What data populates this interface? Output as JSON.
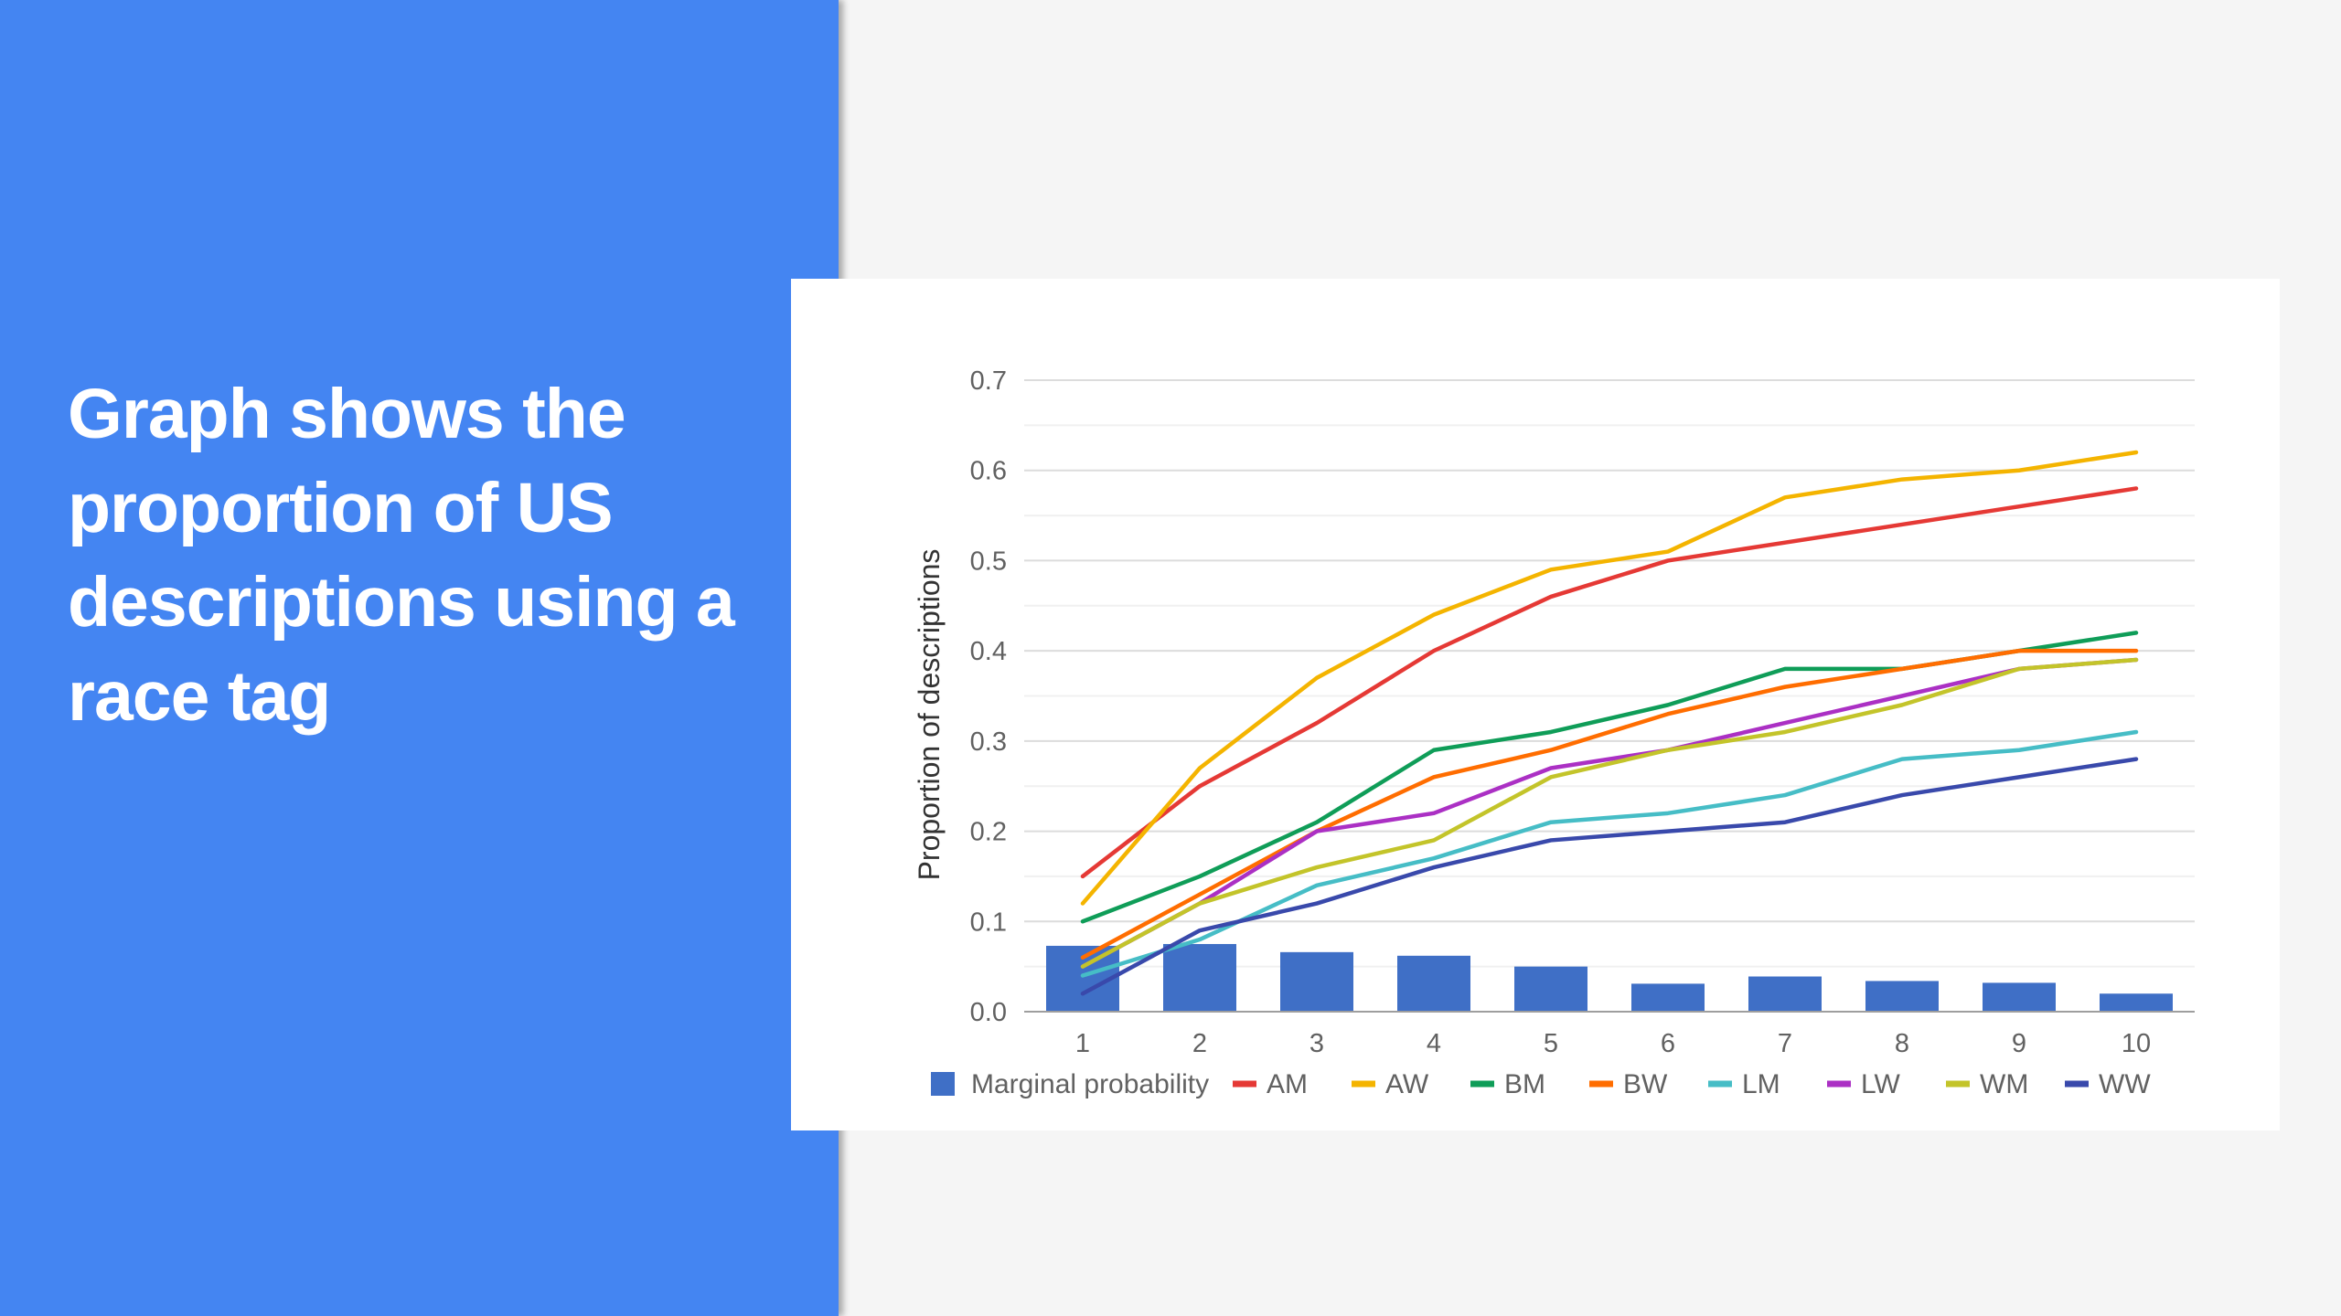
{
  "slide": {
    "title": "Graph shows the proportion of US descriptions using a race tag",
    "panel_color": "#4485f2"
  },
  "chart_data": {
    "type": "bar",
    "title": "",
    "xlabel": "",
    "ylabel": "Proportion of descriptions",
    "categories": [
      "1",
      "2",
      "3",
      "4",
      "5",
      "6",
      "7",
      "8",
      "9",
      "10"
    ],
    "ylim": [
      0,
      0.7
    ],
    "yticks": [
      "0.0",
      "0.1",
      "0.2",
      "0.3",
      "0.4",
      "0.5",
      "0.6",
      "0.7"
    ],
    "grid": true,
    "legend_position": "bottom",
    "bar_series": {
      "name": "Marginal probability",
      "color": "#3f6fc6",
      "values": [
        0.073,
        0.075,
        0.066,
        0.062,
        0.05,
        0.031,
        0.039,
        0.034,
        0.032,
        0.02
      ]
    },
    "line_series": [
      {
        "name": "AM",
        "color": "#e53935",
        "values": [
          0.15,
          0.25,
          0.32,
          0.4,
          0.46,
          0.5,
          0.52,
          0.54,
          0.56,
          0.58
        ]
      },
      {
        "name": "AW",
        "color": "#f4b400",
        "values": [
          0.12,
          0.27,
          0.37,
          0.44,
          0.49,
          0.51,
          0.57,
          0.59,
          0.6,
          0.62
        ]
      },
      {
        "name": "BM",
        "color": "#0f9d58",
        "values": [
          0.1,
          0.15,
          0.21,
          0.29,
          0.31,
          0.34,
          0.38,
          0.38,
          0.4,
          0.42
        ]
      },
      {
        "name": "BW",
        "color": "#ff6d00",
        "values": [
          0.06,
          0.13,
          0.2,
          0.26,
          0.29,
          0.33,
          0.36,
          0.38,
          0.4,
          0.4
        ]
      },
      {
        "name": "LM",
        "color": "#46bdc6",
        "values": [
          0.04,
          0.08,
          0.14,
          0.17,
          0.21,
          0.22,
          0.24,
          0.28,
          0.29,
          0.31
        ]
      },
      {
        "name": "LW",
        "color": "#ab30c4",
        "values": [
          0.05,
          0.12,
          0.2,
          0.22,
          0.27,
          0.29,
          0.32,
          0.35,
          0.38,
          0.39
        ]
      },
      {
        "name": "WM",
        "color": "#c3c42a",
        "values": [
          0.05,
          0.12,
          0.16,
          0.19,
          0.26,
          0.29,
          0.31,
          0.34,
          0.38,
          0.39
        ]
      },
      {
        "name": "WW",
        "color": "#3949ab",
        "values": [
          0.02,
          0.09,
          0.12,
          0.16,
          0.19,
          0.2,
          0.21,
          0.24,
          0.26,
          0.28
        ]
      }
    ]
  }
}
